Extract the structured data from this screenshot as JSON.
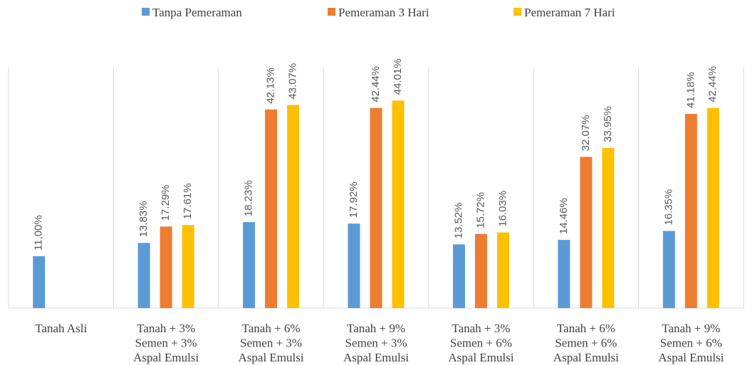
{
  "chart_data": {
    "type": "bar",
    "categories": [
      [
        "Tanah Asli"
      ],
      [
        "Tanah + 3%",
        "Semen + 3%",
        "Aspal Emulsi"
      ],
      [
        "Tanah + 6%",
        "Semen + 3%",
        "Aspal Emulsi"
      ],
      [
        "Tanah + 9%",
        "Semen + 3%",
        "Aspal Emulsi"
      ],
      [
        "Tanah + 3%",
        "Semen + 6%",
        "Aspal Emulsi"
      ],
      [
        "Tanah + 6%",
        "Semen + 6%",
        "Aspal Emulsi"
      ],
      [
        "Tanah + 9%",
        "Semen + 6%",
        "Aspal Emulsi"
      ]
    ],
    "series": [
      {
        "name": "Tanpa Pemeraman",
        "color": "#5b9bd5",
        "values": [
          11,
          13.83,
          18.23,
          17.92,
          13.52,
          14.46,
          16.35
        ],
        "value_labels": [
          "11,00%",
          "13.83%",
          "18.23%",
          "17.92%",
          "13.52%",
          "14.46%",
          "16.35%"
        ]
      },
      {
        "name": "Pemeraman 3 Hari",
        "color": "#ed7d31",
        "values": [
          null,
          17.29,
          42.13,
          42.44,
          15.72,
          32.07,
          41.18
        ],
        "value_labels": [
          null,
          "17.29%",
          "42.13%",
          "42.44%",
          "15.72%",
          "32.07%",
          "41.18%"
        ]
      },
      {
        "name": "Pemeraman 7 Hari",
        "color": "#ffc000",
        "values": [
          null,
          17.61,
          43.07,
          44.01,
          16.03,
          33.95,
          42.44
        ],
        "value_labels": [
          null,
          "17.61%",
          "43.07%",
          "44.01%",
          "16.03%",
          "33.95%",
          "42.44%"
        ]
      }
    ],
    "ylim": [
      0,
      51
    ],
    "legend": "top"
  }
}
